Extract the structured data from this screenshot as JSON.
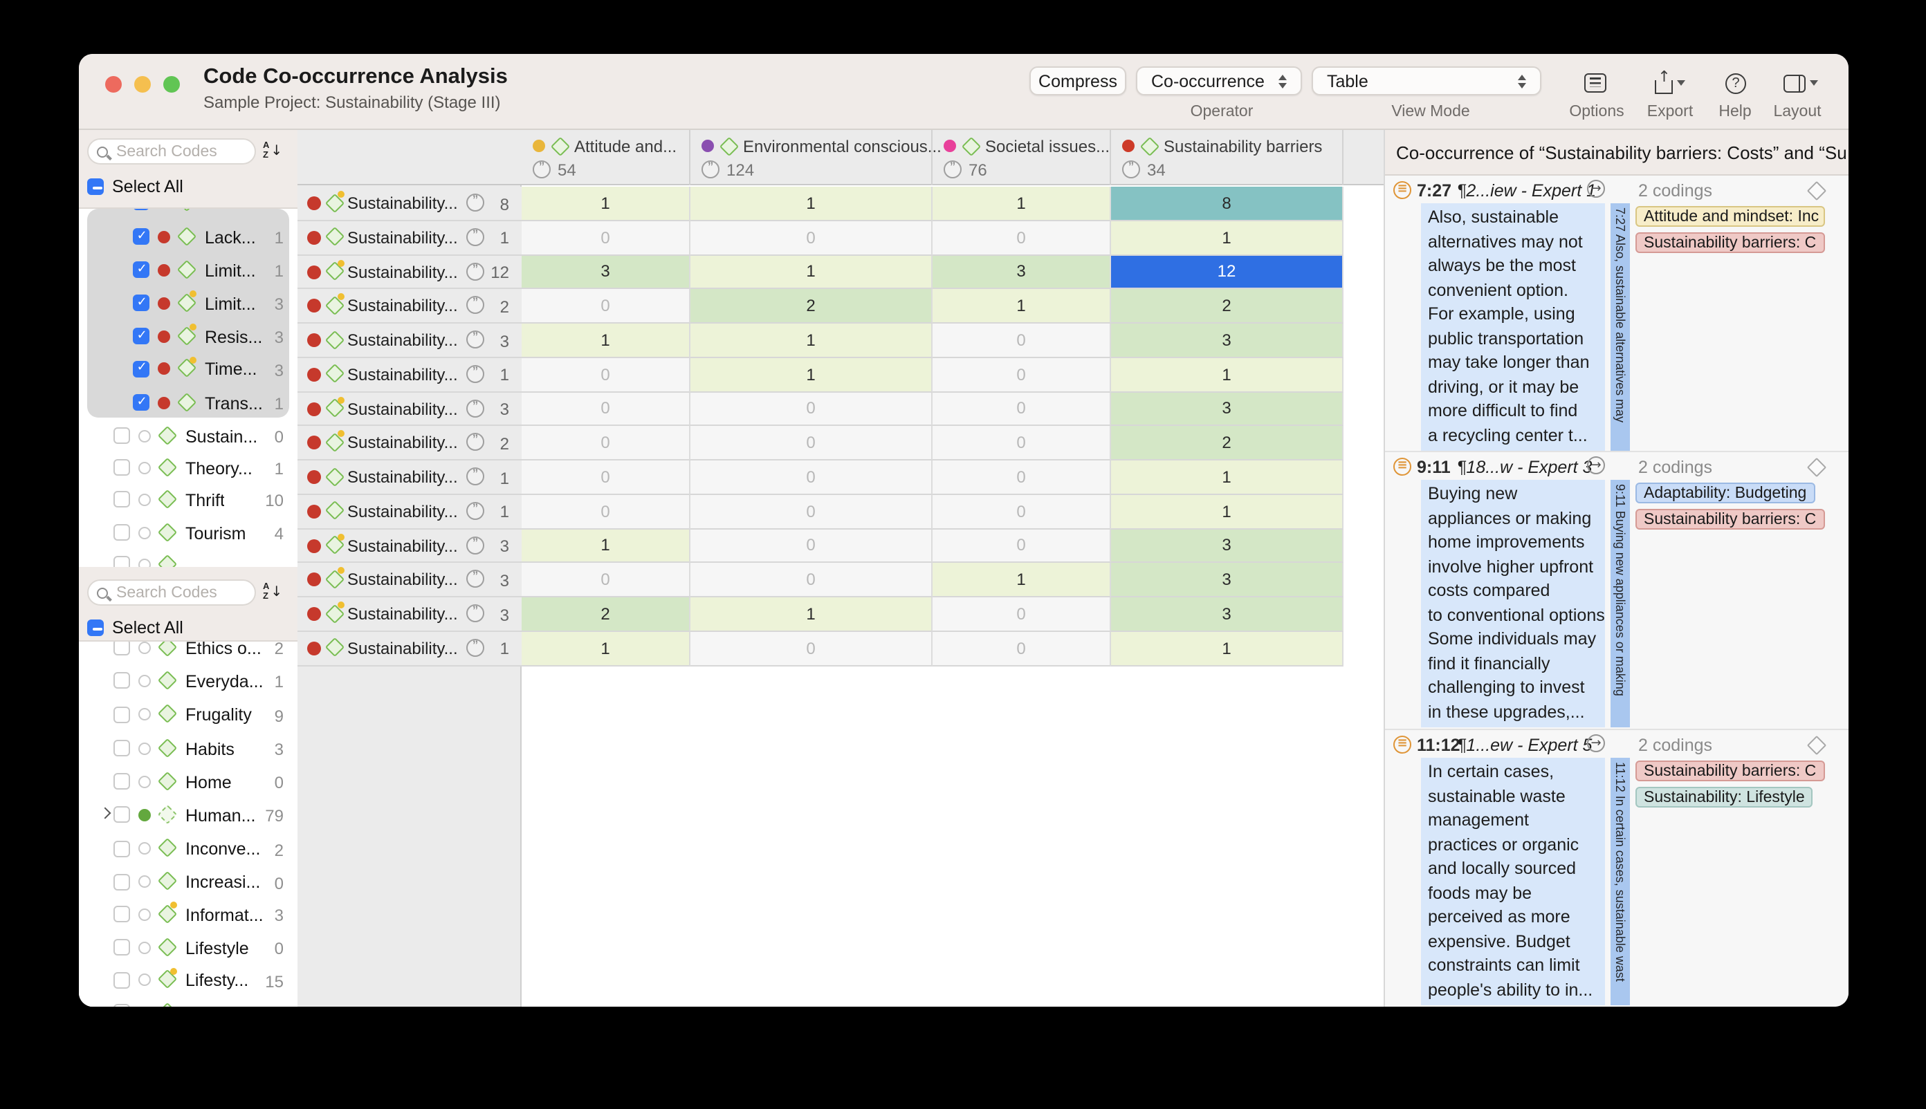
{
  "window": {
    "title": "Code Co-occurrence Analysis",
    "subtitle": "Sample Project: Sustainability (Stage III)"
  },
  "toolbar": {
    "compress": "Compress",
    "operator_value": "Co-occurrence",
    "operator_label": "Operator",
    "view_mode_value": "Table",
    "view_mode_label": "View Mode",
    "options_label": "Options",
    "export_label": "Export",
    "help_label": "Help",
    "layout_label": "Layout"
  },
  "sidebar": {
    "search_placeholder": "Search Codes",
    "select_all": "Select All",
    "list1": [
      {
        "partial": true,
        "state": "checked",
        "indent": true
      },
      {
        "label": "Lack...",
        "count": "1",
        "state": "checked",
        "indent": true,
        "dot": false
      },
      {
        "label": "Limit...",
        "count": "1",
        "state": "checked",
        "indent": true,
        "dot": false
      },
      {
        "label": "Limit...",
        "count": "3",
        "state": "checked",
        "indent": true,
        "dot": true
      },
      {
        "label": "Resis...",
        "count": "3",
        "state": "checked",
        "indent": true,
        "dot": true
      },
      {
        "label": "Time...",
        "count": "3",
        "state": "checked",
        "indent": true,
        "dot": true
      },
      {
        "label": "Trans...",
        "count": "1",
        "state": "checked",
        "indent": true,
        "dot": false
      },
      {
        "label": "Sustain...",
        "count": "0",
        "state": "unchecked",
        "dot": false
      },
      {
        "label": "Theory...",
        "count": "1",
        "state": "unchecked",
        "dot": false
      },
      {
        "label": "Thrift",
        "count": "10",
        "state": "unchecked",
        "dot": false
      },
      {
        "label": "Tourism",
        "count": "4",
        "state": "unchecked",
        "dot": false
      },
      {
        "partial": true,
        "state": "unchecked"
      }
    ],
    "list2": [
      {
        "label": "Ethics o...",
        "count": "2",
        "state": "unchecked",
        "dot": false
      },
      {
        "label": "Everyda...",
        "count": "1",
        "state": "unchecked",
        "dot": false
      },
      {
        "label": "Frugality",
        "count": "9",
        "state": "unchecked",
        "dot": false
      },
      {
        "label": "Habits",
        "count": "3",
        "state": "unchecked",
        "dot": false
      },
      {
        "label": "Home",
        "count": "0",
        "state": "unchecked",
        "dot": false
      },
      {
        "label": "Human...",
        "count": "79",
        "state": "unchecked",
        "dot": false,
        "circle": "green",
        "dashed": true,
        "expand": true
      },
      {
        "label": "Inconve...",
        "count": "2",
        "state": "unchecked",
        "dot": false
      },
      {
        "label": "Increasi...",
        "count": "0",
        "state": "unchecked",
        "dot": false
      },
      {
        "label": "Informat...",
        "count": "3",
        "state": "unchecked",
        "dot": true
      },
      {
        "label": "Lifestyle",
        "count": "0",
        "state": "unchecked",
        "dot": false
      },
      {
        "label": "Lifesty...",
        "count": "15",
        "state": "unchecked",
        "dot": true
      },
      {
        "partial": true,
        "state": "unchecked"
      }
    ]
  },
  "table": {
    "row_label": "Sustainability...",
    "columns": [
      {
        "name": "Attitude and...",
        "color": "#e9b63b",
        "count": "54"
      },
      {
        "name": "Environmental conscious...",
        "color": "#8a4fb0",
        "count": "124"
      },
      {
        "name": "Societal issues...",
        "color": "#e8409a",
        "count": "76"
      },
      {
        "name": "Sustainability barriers",
        "color": "#cd3a28",
        "count": "34"
      }
    ],
    "rows": [
      {
        "dot": true,
        "count": "8",
        "cells": [
          {
            "v": "1",
            "t": "l"
          },
          {
            "v": "1",
            "t": "l"
          },
          {
            "v": "1",
            "t": "l"
          },
          {
            "v": "8",
            "t": "t"
          }
        ]
      },
      {
        "dot": false,
        "count": "1",
        "cells": [
          {
            "v": "0",
            "t": "z"
          },
          {
            "v": "0",
            "t": "z"
          },
          {
            "v": "0",
            "t": "z"
          },
          {
            "v": "1",
            "t": "l"
          }
        ]
      },
      {
        "dot": true,
        "count": "12",
        "cells": [
          {
            "v": "3",
            "t": "m"
          },
          {
            "v": "1",
            "t": "l"
          },
          {
            "v": "3",
            "t": "m"
          },
          {
            "v": "12",
            "t": "b"
          }
        ]
      },
      {
        "dot": true,
        "count": "2",
        "cells": [
          {
            "v": "0",
            "t": "z"
          },
          {
            "v": "2",
            "t": "m"
          },
          {
            "v": "1",
            "t": "l"
          },
          {
            "v": "2",
            "t": "m"
          }
        ]
      },
      {
        "dot": false,
        "count": "3",
        "cells": [
          {
            "v": "1",
            "t": "l"
          },
          {
            "v": "1",
            "t": "l"
          },
          {
            "v": "0",
            "t": "z"
          },
          {
            "v": "3",
            "t": "m"
          }
        ]
      },
      {
        "dot": false,
        "count": "1",
        "cells": [
          {
            "v": "0",
            "t": "z"
          },
          {
            "v": "1",
            "t": "l"
          },
          {
            "v": "0",
            "t": "z"
          },
          {
            "v": "1",
            "t": "l"
          }
        ]
      },
      {
        "dot": true,
        "count": "3",
        "cells": [
          {
            "v": "0",
            "t": "z"
          },
          {
            "v": "0",
            "t": "z"
          },
          {
            "v": "0",
            "t": "z"
          },
          {
            "v": "3",
            "t": "m"
          }
        ]
      },
      {
        "dot": true,
        "count": "2",
        "cells": [
          {
            "v": "0",
            "t": "z"
          },
          {
            "v": "0",
            "t": "z"
          },
          {
            "v": "0",
            "t": "z"
          },
          {
            "v": "2",
            "t": "m"
          }
        ]
      },
      {
        "dot": false,
        "count": "1",
        "cells": [
          {
            "v": "0",
            "t": "z"
          },
          {
            "v": "0",
            "t": "z"
          },
          {
            "v": "0",
            "t": "z"
          },
          {
            "v": "1",
            "t": "l"
          }
        ]
      },
      {
        "dot": false,
        "count": "1",
        "cells": [
          {
            "v": "0",
            "t": "z"
          },
          {
            "v": "0",
            "t": "z"
          },
          {
            "v": "0",
            "t": "z"
          },
          {
            "v": "1",
            "t": "l"
          }
        ]
      },
      {
        "dot": true,
        "count": "3",
        "cells": [
          {
            "v": "1",
            "t": "l"
          },
          {
            "v": "0",
            "t": "z"
          },
          {
            "v": "0",
            "t": "z"
          },
          {
            "v": "3",
            "t": "m"
          }
        ]
      },
      {
        "dot": true,
        "count": "3",
        "cells": [
          {
            "v": "0",
            "t": "z"
          },
          {
            "v": "0",
            "t": "z"
          },
          {
            "v": "1",
            "t": "l"
          },
          {
            "v": "3",
            "t": "m"
          }
        ]
      },
      {
        "dot": true,
        "count": "3",
        "cells": [
          {
            "v": "2",
            "t": "m"
          },
          {
            "v": "1",
            "t": "l"
          },
          {
            "v": "0",
            "t": "z"
          },
          {
            "v": "3",
            "t": "m"
          }
        ]
      },
      {
        "dot": false,
        "count": "1",
        "cells": [
          {
            "v": "1",
            "t": "l"
          },
          {
            "v": "0",
            "t": "z"
          },
          {
            "v": "0",
            "t": "z"
          },
          {
            "v": "1",
            "t": "l"
          }
        ]
      }
    ]
  },
  "panel": {
    "header": "Co-occurrence of “Sustainability barriers: Costs” and “Susta...",
    "excerpts": [
      {
        "pos": "7:27",
        "doc": "¶2...iew - Expert 1",
        "codings": "2 codings",
        "text": "Also, sustainable\nalternatives may not\nalways be the most\nconvenient option.\nFor example, using\npublic transportation\nmay take longer than\ndriving, or it may be\nmore difficult to find\na recycling center t...",
        "strip": "7:27 Also, sustainable alternatives may",
        "tags": [
          {
            "label": "Attitude and mindset: Inc",
            "type": "tan"
          },
          {
            "label": "Sustainability barriers: C",
            "type": "pink"
          }
        ]
      },
      {
        "pos": "9:11",
        "doc": "¶18...w - Expert 3",
        "codings": "2 codings",
        "text": "Buying new\nappliances or making\nhome improvements\ninvolve higher upfront\ncosts compared\nto conventional options.\nSome individuals may\nfind it financially\nchallenging to invest\nin these upgrades,...",
        "strip": "9:11 Buying new appliances or making",
        "tags": [
          {
            "label": "Adaptability: Budgeting",
            "type": "blue"
          },
          {
            "label": "Sustainability barriers: C",
            "type": "pink"
          }
        ]
      },
      {
        "pos": "11:12",
        "doc": "¶1...ew - Expert 5",
        "codings": "2 codings",
        "text": "In certain cases,\nsustainable waste\nmanagement\npractices or organic\nand locally sourced\nfoods may be\nperceived as more\nexpensive. Budget\nconstraints can limit\npeople's ability to in...",
        "strip": "11:12 In certain cases, sustainable wast",
        "tags": [
          {
            "label": "Sustainability barriers: C",
            "type": "pink"
          },
          {
            "label": "Sustainability: Lifestyle",
            "type": "teal"
          }
        ]
      }
    ]
  },
  "colors": {
    "selected_cell": "#2f6fe3",
    "high_cell": "#85c2c3",
    "mid_cell": "#d4e7c6",
    "low_cell": "#edf3d8",
    "checkbox_accent": "#3377f6",
    "traffic_red": "#ed6a5e",
    "traffic_yellow": "#f5bf4f",
    "traffic_green": "#61c554"
  }
}
